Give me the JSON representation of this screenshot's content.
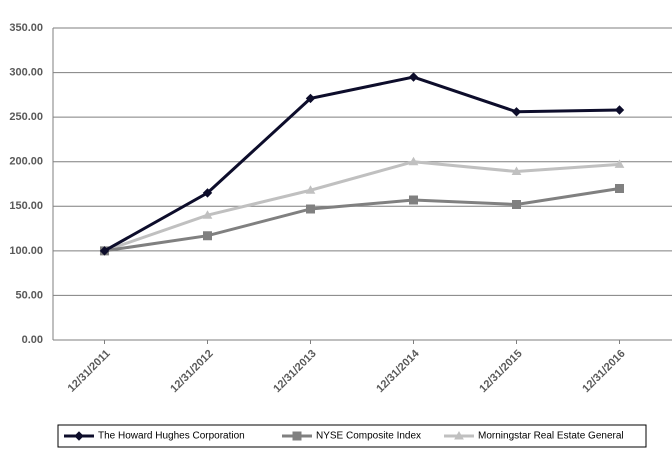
{
  "chart_data": {
    "type": "line",
    "categories": [
      "12/31/2011",
      "12/31/2012",
      "12/31/2013",
      "12/31/2014",
      "12/31/2015",
      "12/31/2016"
    ],
    "series": [
      {
        "name": "The Howard Hughes Corporation",
        "color": "#0d0d2b",
        "marker": "diamond",
        "values": [
          100,
          165,
          271,
          295,
          256,
          258
        ]
      },
      {
        "name": "NYSE Composite Index",
        "color": "#808080",
        "marker": "square",
        "values": [
          100,
          117,
          147,
          157,
          152,
          170
        ]
      },
      {
        "name": "Morningstar Real Estate General",
        "color": "#c0c0c0",
        "marker": "triangle",
        "values": [
          100,
          140,
          168,
          200,
          189,
          197
        ]
      }
    ],
    "ylim": [
      0,
      350
    ],
    "yticks": [
      {
        "value": 0,
        "label": "0.00"
      },
      {
        "value": 50,
        "label": "50.00"
      },
      {
        "value": 100,
        "label": "100.00"
      },
      {
        "value": 150,
        "label": "150.00"
      },
      {
        "value": 200,
        "label": "200.00"
      },
      {
        "value": 250,
        "label": "250.00"
      },
      {
        "value": 300,
        "label": "300.00"
      },
      {
        "value": 350,
        "label": "350.00"
      }
    ],
    "grid": true,
    "legend": "bottom"
  }
}
